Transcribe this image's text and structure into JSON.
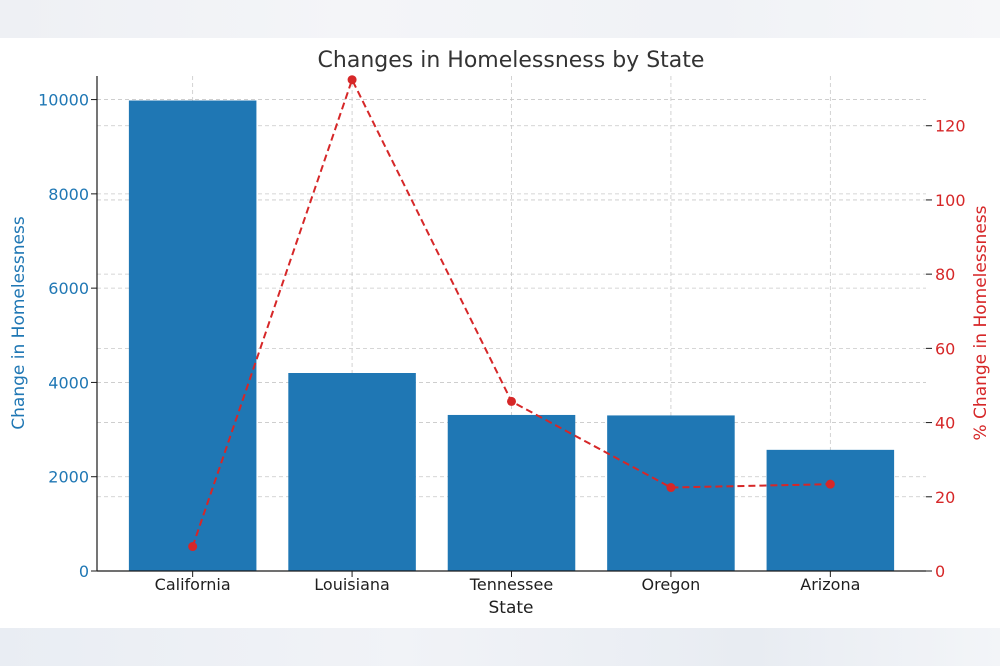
{
  "chart_data": {
    "type": "bar",
    "title": "Changes in Homelessness by State",
    "xlabel": "State",
    "ylabel": "Change in Homelessness",
    "y2label": "% Change in Homelessness",
    "categories": [
      "California",
      "Louisiana",
      "Tennessee",
      "Oregon",
      "Arizona"
    ],
    "series": [
      {
        "type": "bar",
        "axis": "left",
        "values": [
          9980,
          4200,
          3310,
          3300,
          2570
        ]
      },
      {
        "type": "line",
        "axis": "right",
        "style": "dashed",
        "values": [
          6.6,
          132.4,
          45.7,
          22.5,
          23.4
        ]
      }
    ],
    "ylim": [
      0,
      10500
    ],
    "y2lim": [
      0,
      133.4
    ],
    "yticks": [
      "0",
      "2000",
      "4000",
      "6000",
      "8000",
      "10000"
    ],
    "y2ticks": [
      "0",
      "20",
      "40",
      "60",
      "80",
      "100",
      "120"
    ],
    "grid": true,
    "legend": "none",
    "colors": {
      "bar": "#1f77b4",
      "line": "#d62728",
      "grid": "#c8c8c8",
      "axis_text": "#1f1f1f",
      "title_text": "#333333"
    }
  }
}
